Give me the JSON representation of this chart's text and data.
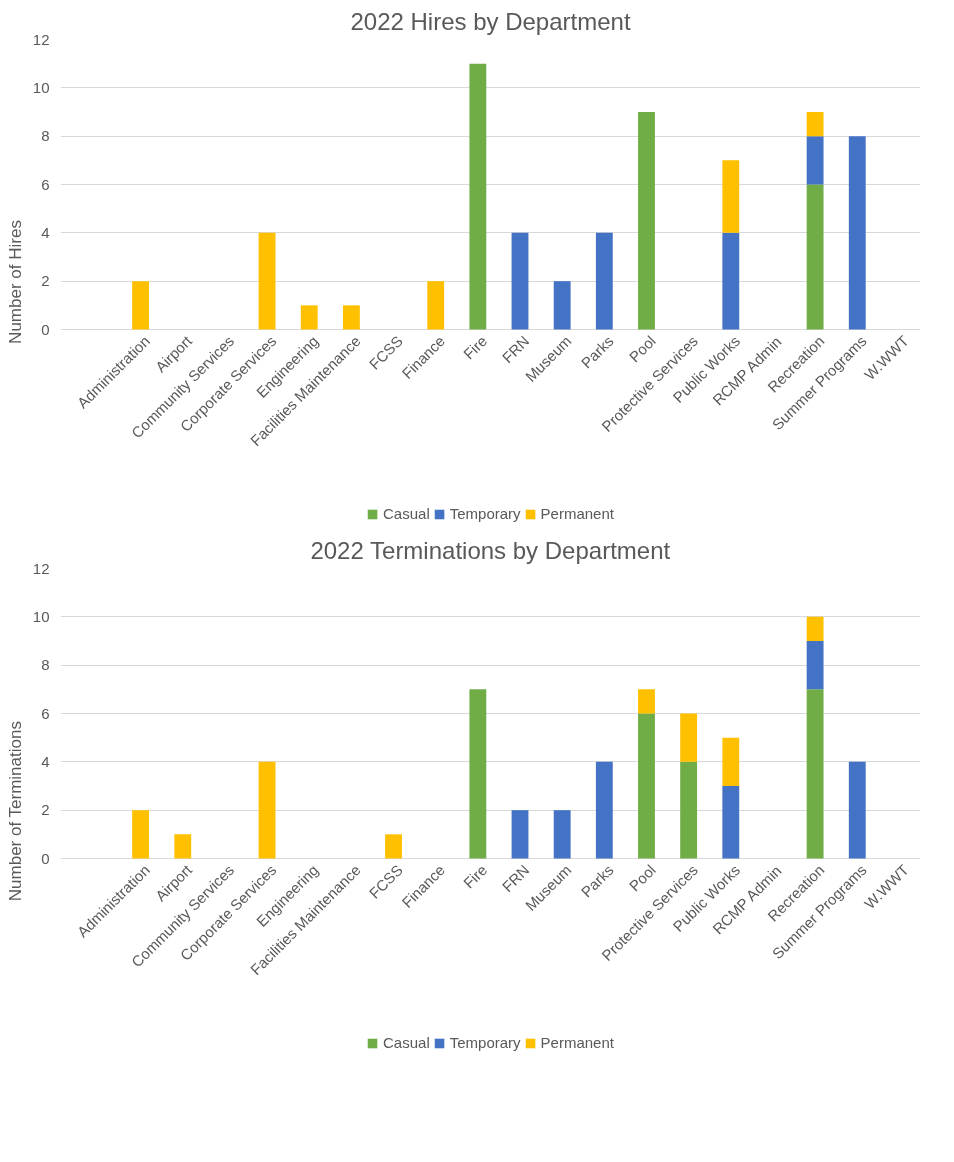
{
  "chart_data": [
    {
      "type": "bar",
      "title": "2022 Hires by Department",
      "ylabel": "Number of Hires",
      "stacked": true,
      "categories": [
        "Administration",
        "Airport",
        "Community Services",
        "Corporate Services",
        "Engineering",
        "Facilities Maintenance",
        "FCSS",
        "Finance",
        "Fire",
        "FRN",
        "Museum",
        "Parks",
        "Pool",
        "Protective Services",
        "Public Works",
        "RCMP Admin",
        "Recreation",
        "Summer Programs",
        "W.WWT"
      ],
      "series": [
        {
          "name": "Casual",
          "color": "#70ad47",
          "values": [
            0,
            0,
            0,
            0,
            0,
            0,
            0,
            0,
            11,
            0,
            0,
            0,
            9,
            0,
            0,
            0,
            6,
            0,
            0
          ]
        },
        {
          "name": "Temporary",
          "color": "#4472c4",
          "values": [
            0,
            0,
            0,
            0,
            0,
            0,
            0,
            0,
            0,
            4,
            2,
            4,
            0,
            0,
            4,
            0,
            2,
            8,
            0
          ]
        },
        {
          "name": "Permanent",
          "color": "#ffc000",
          "values": [
            2,
            0,
            0,
            4,
            1,
            1,
            0,
            2,
            0,
            0,
            0,
            0,
            0,
            0,
            3,
            0,
            1,
            0,
            0
          ]
        }
      ],
      "ylim": [
        0,
        12
      ],
      "yticks": [
        0,
        2,
        4,
        6,
        8,
        10,
        12
      ],
      "grid": "y",
      "legend": "bottom"
    },
    {
      "type": "bar",
      "title": "2022 Terminations by Department",
      "ylabel": "Number of Terminations",
      "stacked": true,
      "categories": [
        "Administration",
        "Airport",
        "Community Services",
        "Corporate Services",
        "Engineering",
        "Facilities Maintenance",
        "FCSS",
        "Finance",
        "Fire",
        "FRN",
        "Museum",
        "Parks",
        "Pool",
        "Protective Services",
        "Public Works",
        "RCMP Admin",
        "Recreation",
        "Summer Programs",
        "W.WWT"
      ],
      "series": [
        {
          "name": "Casual",
          "color": "#70ad47",
          "values": [
            0,
            0,
            0,
            0,
            0,
            0,
            0,
            0,
            7,
            0,
            0,
            0,
            6,
            4,
            0,
            0,
            7,
            0,
            0
          ]
        },
        {
          "name": "Temporary",
          "color": "#4472c4",
          "values": [
            0,
            0,
            0,
            0,
            0,
            0,
            0,
            0,
            0,
            2,
            2,
            4,
            0,
            0,
            3,
            0,
            2,
            4,
            0
          ]
        },
        {
          "name": "Permanent",
          "color": "#ffc000",
          "values": [
            2,
            1,
            0,
            4,
            0,
            0,
            1,
            0,
            0,
            0,
            0,
            0,
            1,
            2,
            2,
            0,
            1,
            0,
            0
          ]
        }
      ],
      "ylim": [
        0,
        12
      ],
      "yticks": [
        0,
        2,
        4,
        6,
        8,
        10,
        12
      ],
      "grid": "y",
      "legend": "bottom"
    }
  ]
}
